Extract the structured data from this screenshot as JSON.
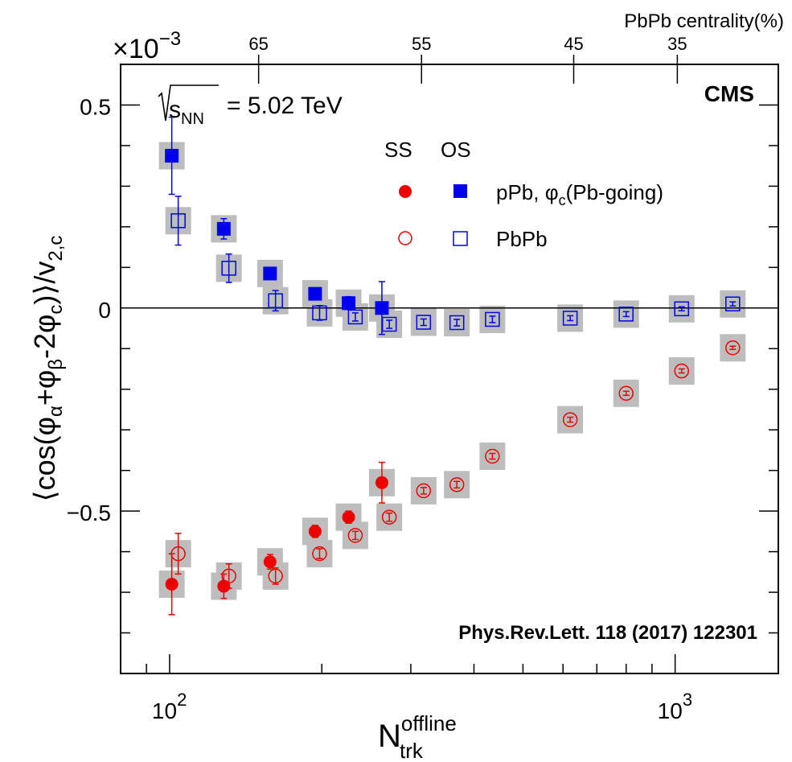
{
  "chart_data": {
    "type": "scatter",
    "energy_label": "= 5.02 TeV",
    "experiment": "CMS",
    "reference": "Phys.Rev.Lett. 118 (2017) 122301",
    "multiplier": "×10",
    "multiplier_exp": "−3",
    "xlabel_main": "N",
    "xlabel_sup": "offline",
    "xlabel_sub": "trk",
    "ylabel": "⟨cos(φα+φβ-2φc)⟩/v2,c",
    "top_axis_label": "PbPb centrality(%)",
    "x_scale": "log",
    "xlim": [
      80,
      1600
    ],
    "ylim": [
      -0.9,
      0.6
    ],
    "x_ticks": [
      {
        "value": 100,
        "base": "10",
        "exp": "2"
      },
      {
        "value": 1000,
        "base": "10",
        "exp": "3"
      }
    ],
    "y_ticks": [
      {
        "value": 0.5,
        "label": "0.5"
      },
      {
        "value": 0,
        "label": "0"
      },
      {
        "value": -0.5,
        "label": "−0.5"
      }
    ],
    "top_ticks": [
      {
        "label": "65",
        "x": 150
      },
      {
        "label": "55",
        "x": 315
      },
      {
        "label": "45",
        "x": 630
      },
      {
        "label": "35",
        "x": 1010
      }
    ],
    "legend": {
      "col_headers": [
        "SS",
        "OS"
      ],
      "rows": [
        "pPb, φc(Pb-going)",
        "PbPb"
      ],
      "placement": "top-right"
    },
    "zero_line": true,
    "series": [
      {
        "name": "pPb, φc(Pb-going)",
        "charge": "OS",
        "marker": "square-filled",
        "color": "#0000ee",
        "points": [
          {
            "x": 101,
            "y": 0.375,
            "err": 0.095
          },
          {
            "x": 128,
            "y": 0.195,
            "err": 0.025
          },
          {
            "x": 158,
            "y": 0.085,
            "err": 0.015
          },
          {
            "x": 194,
            "y": 0.035,
            "err": 0.013
          },
          {
            "x": 226,
            "y": 0.012,
            "err": 0.016
          },
          {
            "x": 263,
            "y": 0.0,
            "err": 0.065
          }
        ]
      },
      {
        "name": "PbPb",
        "charge": "OS",
        "marker": "square-open",
        "color": "#0000ee",
        "points": [
          {
            "x": 104,
            "y": 0.215,
            "err": 0.06
          },
          {
            "x": 131,
            "y": 0.098,
            "err": 0.035
          },
          {
            "x": 162,
            "y": 0.018,
            "err": 0.025
          },
          {
            "x": 198,
            "y": -0.012,
            "err": 0.018
          },
          {
            "x": 233,
            "y": -0.022,
            "err": 0.01
          },
          {
            "x": 272,
            "y": -0.04,
            "err": 0.01
          },
          {
            "x": 318,
            "y": -0.035,
            "err": 0.008
          },
          {
            "x": 370,
            "y": -0.036,
            "err": 0.008
          },
          {
            "x": 435,
            "y": -0.028,
            "err": 0.008
          },
          {
            "x": 620,
            "y": -0.025,
            "err": 0.006
          },
          {
            "x": 800,
            "y": -0.015,
            "err": 0.006
          },
          {
            "x": 1030,
            "y": -0.002,
            "err": 0.005
          },
          {
            "x": 1300,
            "y": 0.01,
            "err": 0.005
          }
        ]
      },
      {
        "name": "pPb, φc(Pb-going)",
        "charge": "SS",
        "marker": "circle-filled",
        "color": "#ee0000",
        "points": [
          {
            "x": 101,
            "y": -0.68,
            "err": 0.075
          },
          {
            "x": 128,
            "y": -0.685,
            "err": 0.03
          },
          {
            "x": 158,
            "y": -0.625,
            "err": 0.018
          },
          {
            "x": 194,
            "y": -0.55,
            "err": 0.015
          },
          {
            "x": 226,
            "y": -0.515,
            "err": 0.015
          },
          {
            "x": 263,
            "y": -0.43,
            "err": 0.05
          }
        ]
      },
      {
        "name": "PbPb",
        "charge": "SS",
        "marker": "circle-open",
        "color": "#ee0000",
        "points": [
          {
            "x": 104,
            "y": -0.605,
            "err": 0.05
          },
          {
            "x": 131,
            "y": -0.66,
            "err": 0.03
          },
          {
            "x": 162,
            "y": -0.66,
            "err": 0.02
          },
          {
            "x": 198,
            "y": -0.605,
            "err": 0.012
          },
          {
            "x": 233,
            "y": -0.56,
            "err": 0.01
          },
          {
            "x": 272,
            "y": -0.515,
            "err": 0.01
          },
          {
            "x": 318,
            "y": -0.45,
            "err": 0.008
          },
          {
            "x": 370,
            "y": -0.435,
            "err": 0.008
          },
          {
            "x": 435,
            "y": -0.365,
            "err": 0.007
          },
          {
            "x": 620,
            "y": -0.275,
            "err": 0.006
          },
          {
            "x": 800,
            "y": -0.21,
            "err": 0.005
          },
          {
            "x": 1030,
            "y": -0.155,
            "err": 0.005
          },
          {
            "x": 1300,
            "y": -0.098,
            "err": 0.004
          }
        ]
      }
    ]
  }
}
